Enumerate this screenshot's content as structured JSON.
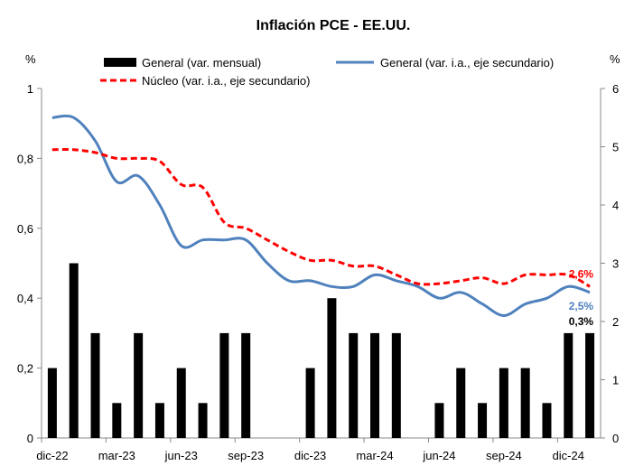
{
  "chart_data": {
    "type": "bar+line",
    "title": "Inflación PCE - EE.UU.",
    "left_unit": "%",
    "right_unit": "%",
    "y_left": {
      "min": 0,
      "max": 1,
      "ticks": [
        "0",
        "0,2",
        "0,4",
        "0,6",
        "0,8",
        "1"
      ]
    },
    "y_right": {
      "min": 0,
      "max": 6,
      "ticks": [
        "0",
        "1",
        "2",
        "3",
        "4",
        "5",
        "6"
      ]
    },
    "x_tick_labels": [
      "dic-22",
      "mar-23",
      "jun-23",
      "sep-23",
      "dic-23",
      "mar-24",
      "jun-24",
      "sep-24",
      "dic-24"
    ],
    "x_tick_months": [
      "2022-12",
      "2023-03",
      "2023-06",
      "2023-09",
      "2023-12",
      "2024-03",
      "2024-06",
      "2024-09",
      "2024-12"
    ],
    "months": [
      "2022-12",
      "2023-01",
      "2023-02",
      "2023-03",
      "2023-04",
      "2023-05",
      "2023-06",
      "2023-07",
      "2023-08",
      "2023-09",
      "2023-10",
      "2023-11",
      "2023-12",
      "2024-01",
      "2024-02",
      "2024-03",
      "2024-04",
      "2024-05",
      "2024-06",
      "2024-07",
      "2024-08",
      "2024-09",
      "2024-10",
      "2024-11",
      "2024-12",
      "2025-01"
    ],
    "series": [
      {
        "name": "General (var. mensual)",
        "type": "bar",
        "axis": "left",
        "color": "#000000",
        "values": [
          0.2,
          0.5,
          0.3,
          0.1,
          0.3,
          0.1,
          0.2,
          0.1,
          0.3,
          0.3,
          0.0,
          0.0,
          0.2,
          0.4,
          0.3,
          0.3,
          0.3,
          0.0,
          0.1,
          0.2,
          0.1,
          0.2,
          0.2,
          0.1,
          0.3,
          0.3
        ]
      },
      {
        "name": "General (var. i.a., eje secundario)",
        "type": "line",
        "axis": "right",
        "color": "#4F81BD",
        "style": "solid",
        "values": [
          5.5,
          5.5,
          5.1,
          4.4,
          4.5,
          4.0,
          3.3,
          3.4,
          3.4,
          3.4,
          3.0,
          2.7,
          2.7,
          2.6,
          2.6,
          2.8,
          2.7,
          2.6,
          2.4,
          2.5,
          2.3,
          2.1,
          2.3,
          2.4,
          2.6,
          2.5
        ]
      },
      {
        "name": "Núcleo (var. i.a., eje secundario)",
        "type": "line",
        "axis": "right",
        "color": "#FF0000",
        "style": "dashed",
        "values": [
          4.95,
          4.95,
          4.9,
          4.8,
          4.8,
          4.75,
          4.35,
          4.3,
          3.7,
          3.6,
          3.4,
          3.2,
          3.05,
          3.05,
          2.95,
          2.95,
          2.8,
          2.65,
          2.65,
          2.7,
          2.75,
          2.65,
          2.8,
          2.8,
          2.8,
          2.6
        ]
      }
    ],
    "annotations": [
      {
        "series": "Núcleo (var. i.a., eje secundario)",
        "text": "2,6%",
        "color": "#FF0000"
      },
      {
        "series": "General (var. i.a., eje secundario)",
        "text": "2,5%",
        "color": "#4F81BD"
      },
      {
        "series": "General (var. mensual)",
        "text": "0,3%",
        "color": "#000000"
      }
    ],
    "legend_position": "top",
    "grid": false
  }
}
